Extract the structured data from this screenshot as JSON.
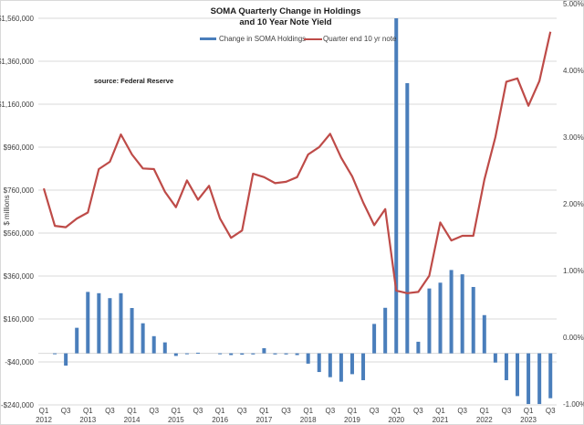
{
  "chart_data": {
    "type": "bar+line",
    "title": [
      "SOMA Quarterly Change in Holdings",
      "and 10 Year Note Yield"
    ],
    "annotation": "source: Federal Reserve",
    "ylabel_left": "$ millions",
    "ylim_left": [
      -240000,
      1560000
    ],
    "ylim_right": [
      -0.01,
      0.05
    ],
    "grid": true,
    "legend_position": "top",
    "left_ticks": [
      {
        "value": 1560000,
        "label": "$1,560,000"
      },
      {
        "value": 1360000,
        "label": "$1,360,000"
      },
      {
        "value": 1160000,
        "label": "$1,160,000"
      },
      {
        "value": 960000,
        "label": "$960,000"
      },
      {
        "value": 760000,
        "label": "$760,000"
      },
      {
        "value": 560000,
        "label": "$560,000"
      },
      {
        "value": 360000,
        "label": "$360,000"
      },
      {
        "value": 160000,
        "label": "$160,000"
      },
      {
        "value": -40000,
        "label": "-$40,000"
      },
      {
        "value": -240000,
        "label": "-$240,000"
      }
    ],
    "right_ticks": [
      {
        "value": 0.05,
        "label": "5.00%"
      },
      {
        "value": 0.04,
        "label": "4.00%"
      },
      {
        "value": 0.03,
        "label": "3.00%"
      },
      {
        "value": 0.02,
        "label": "2.00%"
      },
      {
        "value": 0.01,
        "label": "1.00%"
      },
      {
        "value": 0.0,
        "label": "0.00%"
      },
      {
        "value": -0.01,
        "label": "-1.00%"
      }
    ],
    "x_tick_labels": [
      {
        "q": "Q1",
        "year": "2012"
      },
      {
        "q": "Q3",
        "year": ""
      },
      {
        "q": "Q1",
        "year": "2013"
      },
      {
        "q": "Q3",
        "year": ""
      },
      {
        "q": "Q1",
        "year": "2014"
      },
      {
        "q": "Q3",
        "year": ""
      },
      {
        "q": "Q1",
        "year": "2015"
      },
      {
        "q": "Q3",
        "year": ""
      },
      {
        "q": "Q1",
        "year": "2016"
      },
      {
        "q": "Q3",
        "year": ""
      },
      {
        "q": "Q1",
        "year": "2017"
      },
      {
        "q": "Q3",
        "year": ""
      },
      {
        "q": "Q1",
        "year": "2018"
      },
      {
        "q": "Q3",
        "year": ""
      },
      {
        "q": "Q1",
        "year": "2019"
      },
      {
        "q": "Q3",
        "year": ""
      },
      {
        "q": "Q1",
        "year": "2020"
      },
      {
        "q": "Q3",
        "year": ""
      },
      {
        "q": "Q1",
        "year": "2021"
      },
      {
        "q": "Q3",
        "year": ""
      },
      {
        "q": "Q1",
        "year": "2022"
      },
      {
        "q": "Q3",
        "year": ""
      },
      {
        "q": "Q1",
        "year": "2023"
      },
      {
        "q": "Q3",
        "year": ""
      }
    ],
    "categories": [
      "Q1 2012",
      "Q2 2012",
      "Q3 2012",
      "Q4 2012",
      "Q1 2013",
      "Q2 2013",
      "Q3 2013",
      "Q4 2013",
      "Q1 2014",
      "Q2 2014",
      "Q3 2014",
      "Q4 2014",
      "Q1 2015",
      "Q2 2015",
      "Q3 2015",
      "Q4 2015",
      "Q1 2016",
      "Q2 2016",
      "Q3 2016",
      "Q4 2016",
      "Q1 2017",
      "Q2 2017",
      "Q3 2017",
      "Q4 2017",
      "Q1 2018",
      "Q2 2018",
      "Q3 2018",
      "Q4 2018",
      "Q1 2019",
      "Q2 2019",
      "Q3 2019",
      "Q4 2019",
      "Q1 2020",
      "Q2 2020",
      "Q3 2020",
      "Q4 2020",
      "Q1 2021",
      "Q2 2021",
      "Q3 2021",
      "Q4 2021",
      "Q1 2022",
      "Q2 2022",
      "Q3 2022",
      "Q4 2022",
      "Q1 2023",
      "Q2 2023",
      "Q3 2023"
    ],
    "series": [
      {
        "name": "Change in SOMA Holdings",
        "type": "bar",
        "axis": "left",
        "color": "#4a7ebb",
        "values": [
          0,
          -3000,
          -57000,
          119000,
          286000,
          280000,
          257000,
          280000,
          211000,
          140000,
          80000,
          51000,
          -12000,
          -3000,
          3000,
          0,
          -2000,
          -8000,
          -6000,
          -5000,
          24000,
          -5000,
          -5000,
          -8000,
          -48000,
          -87000,
          -111000,
          -132000,
          -97000,
          -125000,
          137000,
          212000,
          1560000,
          1258000,
          54000,
          302000,
          329000,
          388000,
          368000,
          309000,
          178000,
          -43000,
          -125000,
          -199000,
          -236000,
          -236000,
          -209000
        ]
      },
      {
        "name": "Quarter end 10 yr note",
        "type": "line",
        "axis": "right",
        "color": "#be4b48",
        "values": [
          0.0223,
          0.0167,
          0.0165,
          0.0178,
          0.0187,
          0.0252,
          0.0263,
          0.0304,
          0.0274,
          0.0253,
          0.0252,
          0.0218,
          0.0195,
          0.0235,
          0.0206,
          0.0227,
          0.0178,
          0.0149,
          0.016,
          0.0245,
          0.024,
          0.0231,
          0.0233,
          0.024,
          0.0274,
          0.0285,
          0.0305,
          0.0269,
          0.0241,
          0.0202,
          0.0168,
          0.0192,
          0.007,
          0.0066,
          0.0068,
          0.0092,
          0.0172,
          0.0145,
          0.0152,
          0.0152,
          0.0236,
          0.03,
          0.0383,
          0.0388,
          0.0347,
          0.0384,
          0.0458
        ]
      }
    ]
  }
}
